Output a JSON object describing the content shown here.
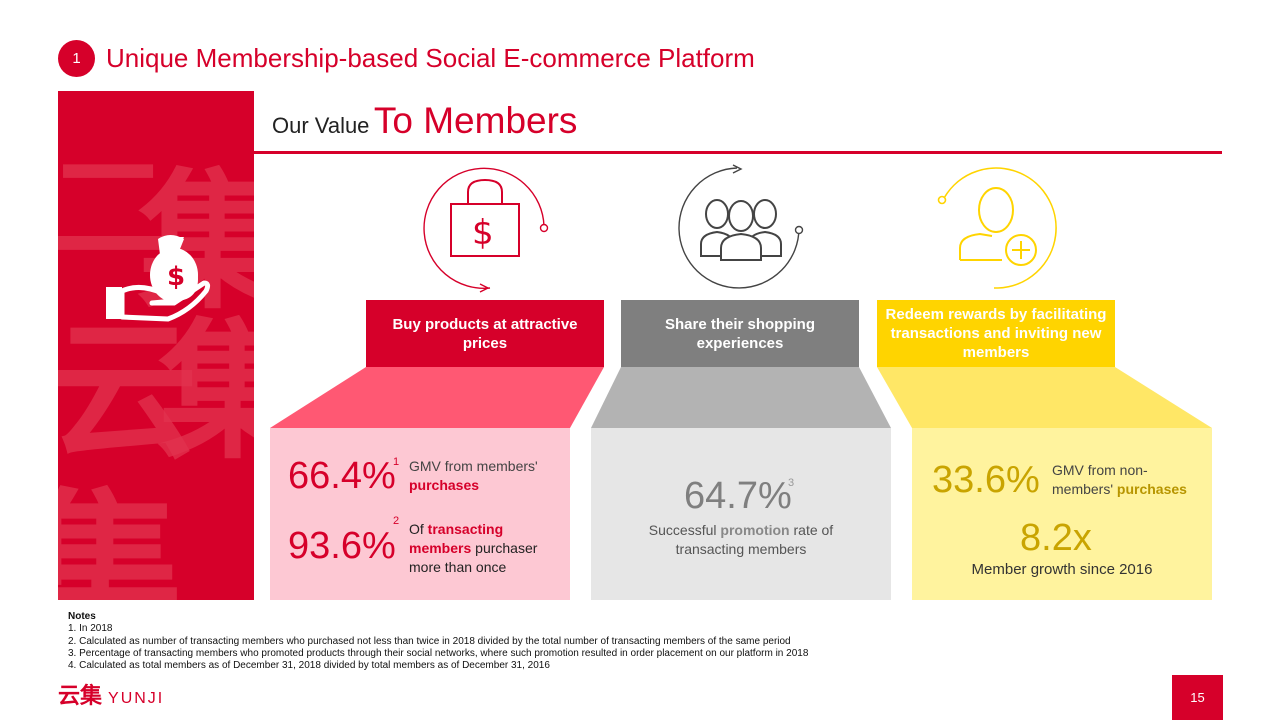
{
  "header": {
    "number": "1",
    "title": "Unique Membership-based Social E-commerce Platform"
  },
  "side_panel": {
    "bg_chars": [
      "二",
      "集",
      "云",
      "集",
      "集"
    ],
    "icon": "hand-money-bag-icon"
  },
  "value_title": {
    "small": "Our Value",
    "big": "To Members"
  },
  "columns": [
    {
      "icon": "shopping-bag-dollar-icon",
      "label": "Buy products at attractive prices",
      "color": "#d6002a",
      "stats": [
        {
          "value": "66.4%",
          "sup": "1",
          "desc_pre": "GMV from members'",
          "desc_hl": "purchases",
          "desc_post": ""
        },
        {
          "value": "93.6%",
          "sup": "2",
          "desc_pre": "Of",
          "desc_hl": "transacting members",
          "desc_post": "purchaser more than once"
        }
      ]
    },
    {
      "icon": "group-of-people-icon",
      "label": "Share their shopping experiences",
      "color": "#7f7f7f",
      "stats": [
        {
          "value": "64.7%",
          "sup": "3",
          "desc_pre": "Successful",
          "desc_hl": "promotion",
          "desc_post": "rate of transacting members"
        }
      ]
    },
    {
      "icon": "add-member-icon",
      "label": "Redeem rewards by facilitating transactions and inviting new members",
      "color": "#ffd400",
      "stats": [
        {
          "value": "33.6%",
          "sup": "",
          "desc_pre": "GMV from non-members'",
          "desc_hl": "purchases",
          "desc_post": ""
        },
        {
          "value": "8.2x",
          "sup": "",
          "desc_pre": "Member growth since 2016",
          "desc_hl": "",
          "desc_post": ""
        }
      ]
    }
  ],
  "notes": {
    "title": "Notes",
    "items": [
      "1. In 2018",
      "2. Calculated as number of transacting members who purchased not less than twice in 2018 divided by the total number of transacting members of the same period",
      "3. Percentage of transacting members who promoted products through their social networks, where such promotion resulted in order placement on our platform in 2018",
      "4. Calculated as total members as of December 31, 2018 divided by total members as of December 31, 2016"
    ]
  },
  "logo": {
    "cn": "云集",
    "en": "YUNJI"
  },
  "page_number": "15"
}
